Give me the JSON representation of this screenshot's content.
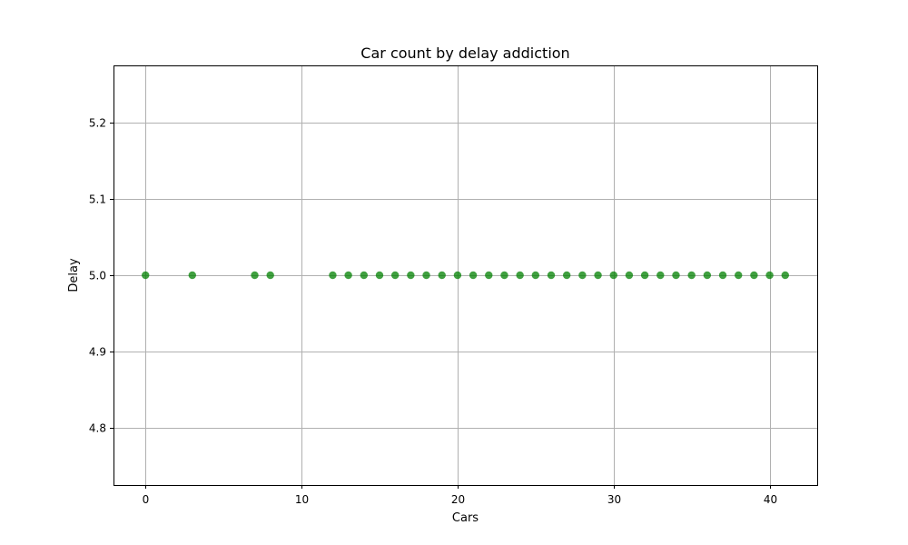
{
  "chart_data": {
    "type": "scatter",
    "title": "Car count by delay addiction",
    "xlabel": "Cars",
    "ylabel": "Delay",
    "xlim": [
      -2.05,
      43.05
    ],
    "ylim": [
      4.725,
      5.275
    ],
    "x_ticks": [
      0,
      10,
      20,
      30,
      40
    ],
    "y_ticks": [
      4.8,
      4.9,
      5.0,
      5.1,
      5.2
    ],
    "x_tick_labels": [
      "0",
      "10",
      "20",
      "30",
      "40"
    ],
    "y_tick_labels": [
      "4.8",
      "4.9",
      "5.0",
      "5.1",
      "5.2"
    ],
    "grid": true,
    "marker_color": "#008000",
    "series": [
      {
        "x": [
          0,
          3,
          7,
          8,
          12,
          13,
          14,
          15,
          16,
          17,
          18,
          19,
          20,
          21,
          22,
          23,
          24,
          25,
          26,
          27,
          28,
          29,
          30,
          31,
          32,
          33,
          34,
          35,
          36,
          37,
          38,
          39,
          40,
          41
        ],
        "y": [
          5.0,
          5.0,
          5.0,
          5.0,
          5.0,
          5.0,
          5.0,
          5.0,
          5.0,
          5.0,
          5.0,
          5.0,
          5.0,
          5.0,
          5.0,
          5.0,
          5.0,
          5.0,
          5.0,
          5.0,
          5.0,
          5.0,
          5.0,
          5.0,
          5.0,
          5.0,
          5.0,
          5.0,
          5.0,
          5.0,
          5.0,
          5.0,
          5.0,
          5.0
        ]
      }
    ]
  }
}
